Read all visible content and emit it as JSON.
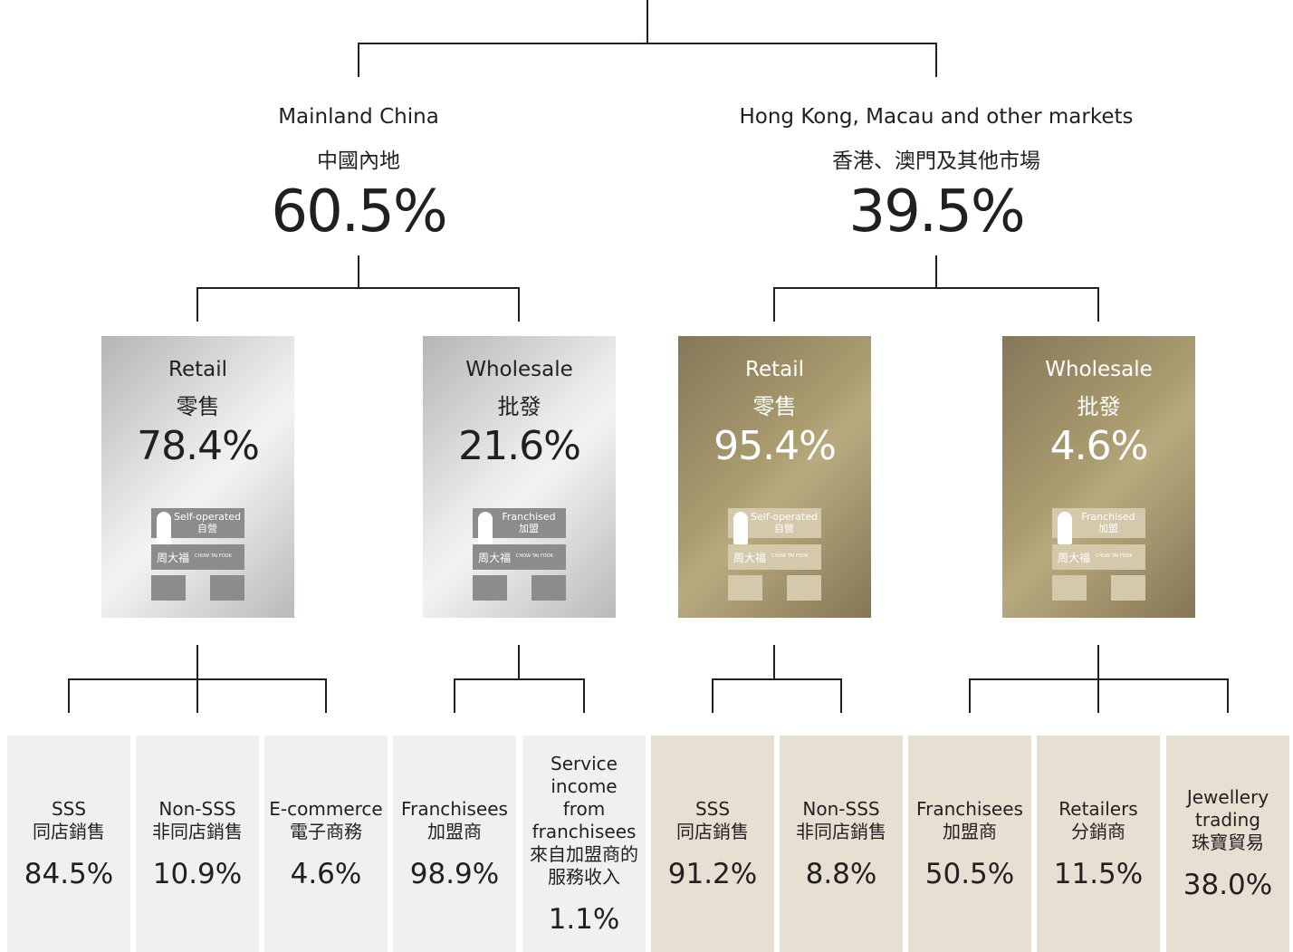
{
  "store_brand": "周大福",
  "store_brand_en": "CHOW TAI FOOK",
  "regions": [
    {
      "name": "Mainland China",
      "name_zh": "中國內地",
      "share": "60.5%",
      "channels": [
        {
          "name": "Retail",
          "name_zh": "零售",
          "share": "78.4%",
          "store_label": "Self-operated",
          "store_label_zh": "自營",
          "breakdown": [
            {
              "name": "SSS",
              "name_zh": "同店銷售",
              "share": "84.5%"
            },
            {
              "name": "Non-SSS",
              "name_zh": "非同店銷售",
              "share": "10.9%"
            },
            {
              "name": "E-commerce",
              "name_zh": "電子商務",
              "share": "4.6%"
            }
          ]
        },
        {
          "name": "Wholesale",
          "name_zh": "批發",
          "share": "21.6%",
          "store_label": "Franchised",
          "store_label_zh": "加盟",
          "breakdown": [
            {
              "name": "Franchisees",
              "name_zh": "加盟商",
              "share": "98.9%"
            },
            {
              "name": "Service income from franchisees",
              "name_zh": "來自加盟商的服務收入",
              "share": "1.1%"
            }
          ]
        }
      ]
    },
    {
      "name": "Hong Kong, Macau and other markets",
      "name_zh": "香港、澳門及其他市場",
      "share": "39.5%",
      "channels": [
        {
          "name": "Retail",
          "name_zh": "零售",
          "share": "95.4%",
          "store_label": "Self-operated",
          "store_label_zh": "自營",
          "breakdown": [
            {
              "name": "SSS",
              "name_zh": "同店銷售",
              "share": "91.2%"
            },
            {
              "name": "Non-SSS",
              "name_zh": "非同店銷售",
              "share": "8.8%"
            }
          ]
        },
        {
          "name": "Wholesale",
          "name_zh": "批發",
          "share": "4.6%",
          "store_label": "Franchised",
          "store_label_zh": "加盟",
          "breakdown": [
            {
              "name": "Franchisees",
              "name_zh": "加盟商",
              "share": "50.5%"
            },
            {
              "name": "Retailers",
              "name_zh": "分銷商",
              "share": "11.5%"
            },
            {
              "name": "Jewellery trading",
              "name_zh": "珠寶貿易",
              "share": "38.0%"
            }
          ]
        }
      ]
    }
  ]
}
